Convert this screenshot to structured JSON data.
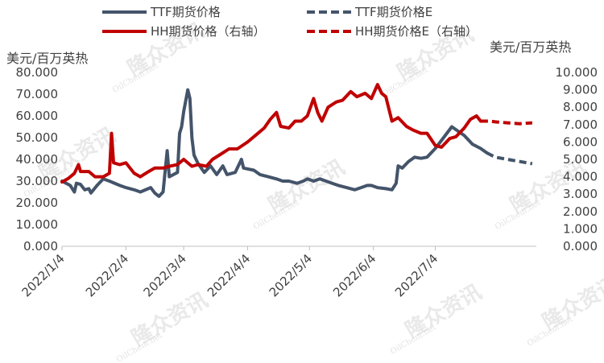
{
  "legend": [
    {
      "label": "TTF期货价格",
      "color": "#44546a",
      "dash": false
    },
    {
      "label": "TTF期货价格E",
      "color": "#44546a",
      "dash": true
    },
    {
      "label": "HH期货价格（右轴）",
      "color": "#c00000",
      "dash": false
    },
    {
      "label": "HH期货价格E（右轴）",
      "color": "#c00000",
      "dash": true
    }
  ],
  "watermark": {
    "brand": "隆众资讯",
    "site": "OilChem.net"
  },
  "chart_data": {
    "type": "line",
    "ylabel_left": "美元/百万英热",
    "ylabel_right": "美元/百万英热",
    "ylim_left": [
      0,
      80
    ],
    "ylim_right": [
      0,
      10
    ],
    "yticks_left": [
      "0.000",
      "10.000",
      "20.000",
      "30.000",
      "40.000",
      "50.000",
      "60.000",
      "70.000",
      "80.000"
    ],
    "yticks_right": [
      "0.000",
      "1.000",
      "2.000",
      "3.000",
      "4.000",
      "5.000",
      "6.000",
      "7.000",
      "8.000",
      "9.000",
      "10.000"
    ],
    "x_ticks": [
      "2022/1/4",
      "2022/2/4",
      "2022/3/4",
      "2022/4/4",
      "2022/5/4",
      "2022/6/4",
      "2022/7/4"
    ],
    "x_range": [
      "2022/1/4",
      "2022/8/22"
    ],
    "series": [
      {
        "name": "TTF期货价格",
        "axis": "left",
        "color": "#44546a",
        "dash": false,
        "points": [
          [
            "2022/1/4",
            30
          ],
          [
            "2022/1/6",
            29
          ],
          [
            "2022/1/8",
            28
          ],
          [
            "2022/1/10",
            25
          ],
          [
            "2022/1/11",
            29
          ],
          [
            "2022/1/13",
            28.5
          ],
          [
            "2022/1/15",
            26
          ],
          [
            "2022/1/17",
            26.5
          ],
          [
            "2022/1/18",
            24.5
          ],
          [
            "2022/1/21",
            28
          ],
          [
            "2022/1/24",
            31
          ],
          [
            "2022/1/27",
            30
          ],
          [
            "2022/2/1",
            28
          ],
          [
            "2022/2/4",
            27
          ],
          [
            "2022/2/8",
            26
          ],
          [
            "2022/2/11",
            25
          ],
          [
            "2022/2/16",
            27
          ],
          [
            "2022/2/18",
            24.5
          ],
          [
            "2022/2/20",
            23
          ],
          [
            "2022/2/22",
            25
          ],
          [
            "2022/2/24",
            44
          ],
          [
            "2022/2/25",
            32
          ],
          [
            "2022/3/1",
            34
          ],
          [
            "2022/3/2",
            52
          ],
          [
            "2022/3/3",
            55
          ],
          [
            "2022/3/4",
            62
          ],
          [
            "2022/3/6",
            72
          ],
          [
            "2022/3/7",
            68
          ],
          [
            "2022/3/8",
            50
          ],
          [
            "2022/3/9",
            42
          ],
          [
            "2022/3/11",
            38
          ],
          [
            "2022/3/14",
            34
          ],
          [
            "2022/3/17",
            37
          ],
          [
            "2022/3/20",
            33
          ],
          [
            "2022/3/23",
            37
          ],
          [
            "2022/3/25",
            33
          ],
          [
            "2022/3/29",
            34
          ],
          [
            "2022/4/1",
            40
          ],
          [
            "2022/4/2",
            36
          ],
          [
            "2022/4/7",
            35
          ],
          [
            "2022/4/10",
            33
          ],
          [
            "2022/4/14",
            32
          ],
          [
            "2022/4/18",
            31
          ],
          [
            "2022/4/21",
            30
          ],
          [
            "2022/4/24",
            30
          ],
          [
            "2022/4/28",
            29
          ],
          [
            "2022/5/1",
            30
          ],
          [
            "2022/5/3",
            31
          ],
          [
            "2022/5/6",
            30
          ],
          [
            "2022/5/9",
            31
          ],
          [
            "2022/5/12",
            30
          ],
          [
            "2022/5/15",
            29
          ],
          [
            "2022/5/18",
            28
          ],
          [
            "2022/5/22",
            27
          ],
          [
            "2022/5/26",
            26
          ],
          [
            "2022/5/29",
            27
          ],
          [
            "2022/6/1",
            28
          ],
          [
            "2022/6/3",
            28
          ],
          [
            "2022/6/6",
            27
          ],
          [
            "2022/6/10",
            26.5
          ],
          [
            "2022/6/13",
            26
          ],
          [
            "2022/6/15",
            29
          ],
          [
            "2022/6/16",
            37
          ],
          [
            "2022/6/18",
            36
          ],
          [
            "2022/6/21",
            39
          ],
          [
            "2022/6/24",
            41
          ],
          [
            "2022/6/27",
            40.5
          ],
          [
            "2022/6/30",
            41
          ],
          [
            "2022/7/4",
            45
          ],
          [
            "2022/7/8",
            50
          ],
          [
            "2022/7/12",
            55
          ],
          [
            "2022/7/15",
            53
          ],
          [
            "2022/7/18",
            51
          ],
          [
            "2022/7/22",
            47
          ],
          [
            "2022/7/26",
            45
          ],
          [
            "2022/7/29",
            43
          ]
        ]
      },
      {
        "name": "TTF期货价格E",
        "axis": "left",
        "color": "#44546a",
        "dash": true,
        "points": [
          [
            "2022/7/29",
            43
          ],
          [
            "2022/8/2",
            41
          ],
          [
            "2022/8/8",
            40
          ],
          [
            "2022/8/14",
            39
          ],
          [
            "2022/8/20",
            38
          ]
        ]
      },
      {
        "name": "HH期货价格（右轴）",
        "axis": "right",
        "color": "#c00000",
        "dash": false,
        "points": [
          [
            "2022/1/4",
            3.7
          ],
          [
            "2022/1/7",
            3.9
          ],
          [
            "2022/1/10",
            4.2
          ],
          [
            "2022/1/12",
            4.7
          ],
          [
            "2022/1/13",
            4.3
          ],
          [
            "2022/1/17",
            4.3
          ],
          [
            "2022/1/20",
            4.0
          ],
          [
            "2022/1/24",
            4.0
          ],
          [
            "2022/1/27",
            4.2
          ],
          [
            "2022/1/28",
            6.5
          ],
          [
            "2022/1/29",
            4.8
          ],
          [
            "2022/2/1",
            4.7
          ],
          [
            "2022/2/4",
            4.8
          ],
          [
            "2022/2/8",
            4.2
          ],
          [
            "2022/2/11",
            4.0
          ],
          [
            "2022/2/15",
            4.3
          ],
          [
            "2022/2/18",
            4.5
          ],
          [
            "2022/2/22",
            4.5
          ],
          [
            "2022/2/25",
            4.6
          ],
          [
            "2022/3/1",
            4.7
          ],
          [
            "2022/3/4",
            5.0
          ],
          [
            "2022/3/8",
            4.6
          ],
          [
            "2022/3/11",
            4.7
          ],
          [
            "2022/3/15",
            4.6
          ],
          [
            "2022/3/18",
            5.0
          ],
          [
            "2022/3/22",
            5.3
          ],
          [
            "2022/3/26",
            5.6
          ],
          [
            "2022/3/30",
            5.6
          ],
          [
            "2022/4/4",
            6.0
          ],
          [
            "2022/4/8",
            6.4
          ],
          [
            "2022/4/12",
            6.8
          ],
          [
            "2022/4/15",
            7.3
          ],
          [
            "2022/4/18",
            7.7
          ],
          [
            "2022/4/20",
            6.9
          ],
          [
            "2022/4/24",
            6.8
          ],
          [
            "2022/4/27",
            7.2
          ],
          [
            "2022/4/30",
            7.2
          ],
          [
            "2022/5/3",
            7.5
          ],
          [
            "2022/5/6",
            8.5
          ],
          [
            "2022/5/8",
            7.7
          ],
          [
            "2022/5/10",
            7.2
          ],
          [
            "2022/5/13",
            8.0
          ],
          [
            "2022/5/17",
            8.3
          ],
          [
            "2022/5/20",
            8.4
          ],
          [
            "2022/5/24",
            8.9
          ],
          [
            "2022/5/27",
            8.6
          ],
          [
            "2022/5/31",
            8.8
          ],
          [
            "2022/6/3",
            8.5
          ],
          [
            "2022/6/6",
            9.3
          ],
          [
            "2022/6/8",
            8.8
          ],
          [
            "2022/6/10",
            8.6
          ],
          [
            "2022/6/13",
            7.2
          ],
          [
            "2022/6/16",
            7.4
          ],
          [
            "2022/6/20",
            6.9
          ],
          [
            "2022/6/23",
            6.7
          ],
          [
            "2022/6/27",
            6.5
          ],
          [
            "2022/6/30",
            6.5
          ],
          [
            "2022/7/4",
            5.8
          ],
          [
            "2022/7/7",
            5.7
          ],
          [
            "2022/7/11",
            6.2
          ],
          [
            "2022/7/14",
            6.3
          ],
          [
            "2022/7/18",
            6.8
          ],
          [
            "2022/7/21",
            7.3
          ],
          [
            "2022/7/24",
            7.5
          ],
          [
            "2022/7/26",
            7.2
          ]
        ]
      },
      {
        "name": "HH期货价格E（右轴）",
        "axis": "right",
        "color": "#c00000",
        "dash": true,
        "points": [
          [
            "2022/7/26",
            7.2
          ],
          [
            "2022/7/30",
            7.2
          ],
          [
            "2022/8/3",
            7.15
          ],
          [
            "2022/8/8",
            7.1
          ],
          [
            "2022/8/14",
            7.05
          ],
          [
            "2022/8/20",
            7.1
          ]
        ]
      }
    ]
  }
}
